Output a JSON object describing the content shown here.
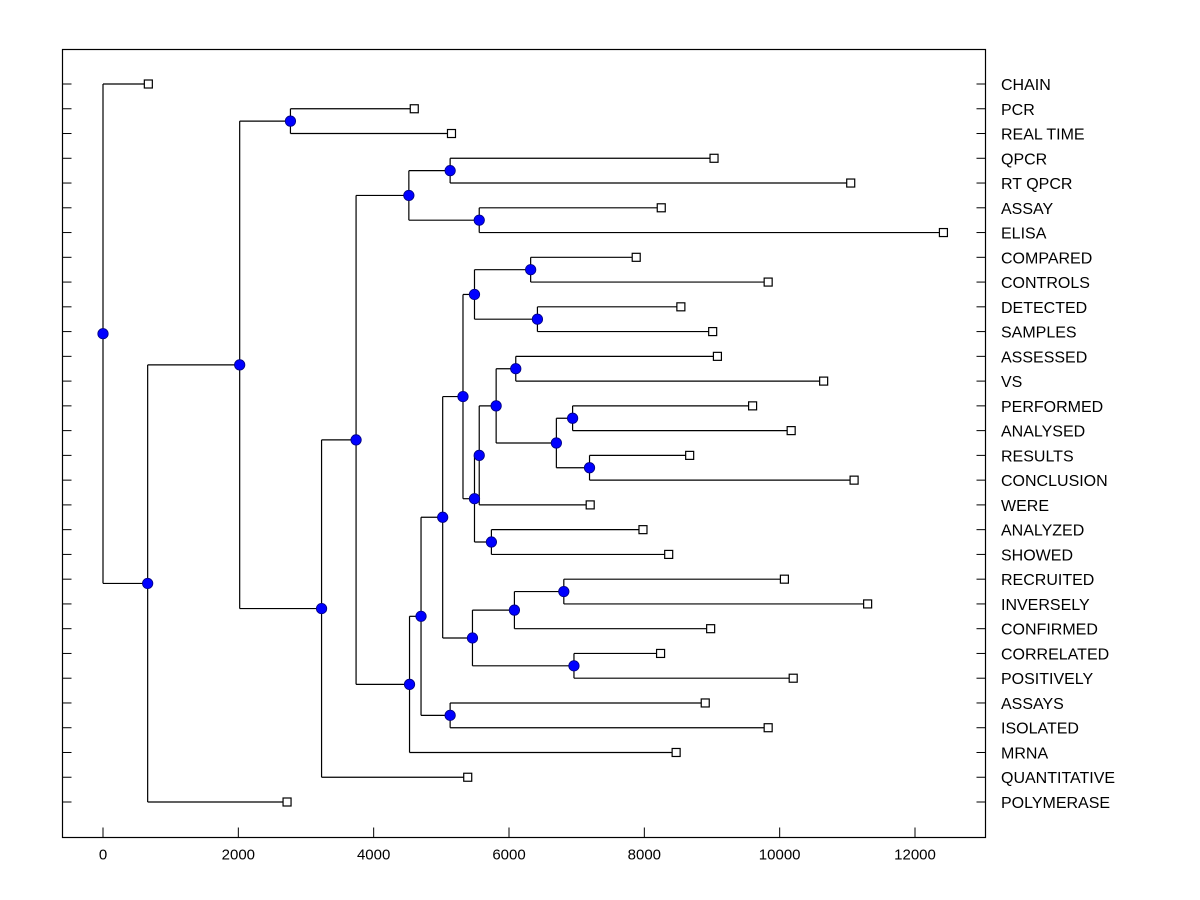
{
  "chart_data": {
    "type": "dendrogram",
    "title": "",
    "xlabel": "",
    "ylabel": "",
    "xlim": [
      -600,
      13000
    ],
    "xticks": [
      0,
      2000,
      4000,
      6000,
      8000,
      10000,
      12000
    ],
    "xtick_labels": [
      "0",
      "2000",
      "4000",
      "6000",
      "8000",
      "10000",
      "12000"
    ],
    "grid": false,
    "legend": "none",
    "colors": {
      "node_fill": "#0000ff",
      "node_stroke": "#000080",
      "leaf_fill": "#ffffff",
      "line": "#000000"
    },
    "leaves": [
      "CHAIN",
      "PCR",
      "REAL TIME",
      "QPCR",
      "RT QPCR",
      "ASSAY",
      "ELISA",
      "COMPARED",
      "CONTROLS",
      "DETECTED",
      "SAMPLES",
      "ASSESSED",
      "VS",
      "PERFORMED",
      "ANALYSED",
      "RESULTS",
      "CONCLUSION",
      "WERE",
      "ANALYZED",
      "SHOWED",
      "RECRUITED",
      "INVERSELY",
      "CONFIRMED",
      "CORRELATED",
      "POSITIVELY",
      "ASSAYS",
      "ISOLATED",
      "MRNA",
      "QUANTITATIVE",
      "POLYMERASE"
    ],
    "tree": {
      "x": 0,
      "children": [
        {
          "leaf": "CHAIN",
          "x": 670
        },
        {
          "x": 660,
          "children": [
            {
              "x": 2020,
              "children": [
                {
                  "x": 2770,
                  "children": [
                    {
                      "leaf": "PCR",
                      "x": 4600
                    },
                    {
                      "leaf": "REAL TIME",
                      "x": 5150
                    }
                  ]
                },
                {
                  "x": 3230,
                  "children": [
                    {
                      "x": 3740,
                      "children": [
                        {
                          "x": 4520,
                          "children": [
                            {
                              "x": 5130,
                              "children": [
                                {
                                  "leaf": "QPCR",
                                  "x": 9030
                                },
                                {
                                  "leaf": "RT QPCR",
                                  "x": 11050
                                }
                              ]
                            },
                            {
                              "x": 5560,
                              "children": [
                                {
                                  "leaf": "ASSAY",
                                  "x": 8250
                                },
                                {
                                  "leaf": "ELISA",
                                  "x": 12420
                                }
                              ]
                            }
                          ]
                        },
                        {
                          "x": 4530,
                          "children": [
                            {
                              "x": 4700,
                              "children": [
                                {
                                  "x": 5020,
                                  "children": [
                                    {
                                      "x": 5320,
                                      "children": [
                                        {
                                          "x": 5490,
                                          "children": [
                                            {
                                              "x": 6320,
                                              "children": [
                                                {
                                                  "leaf": "COMPARED",
                                                  "x": 7880
                                                },
                                                {
                                                  "leaf": "CONTROLS",
                                                  "x": 9830
                                                }
                                              ]
                                            },
                                            {
                                              "x": 6420,
                                              "children": [
                                                {
                                                  "leaf": "DETECTED",
                                                  "x": 8540
                                                },
                                                {
                                                  "leaf": "SAMPLES",
                                                  "x": 9010
                                                }
                                              ]
                                            }
                                          ]
                                        },
                                        {
                                          "x": 5490,
                                          "children": [
                                            {
                                              "x": 5560,
                                              "children": [
                                                {
                                                  "x": 5810,
                                                  "children": [
                                                    {
                                                      "x": 6100,
                                                      "children": [
                                                        {
                                                          "leaf": "ASSESSED",
                                                          "x": 9080
                                                        },
                                                        {
                                                          "leaf": "VS",
                                                          "x": 10650
                                                        }
                                                      ]
                                                    },
                                                    {
                                                      "x": 6700,
                                                      "children": [
                                                        {
                                                          "x": 6940,
                                                          "children": [
                                                            {
                                                              "leaf": "PERFORMED",
                                                              "x": 9600
                                                            },
                                                            {
                                                              "leaf": "ANALYSED",
                                                              "x": 10170
                                                            }
                                                          ]
                                                        },
                                                        {
                                                          "x": 7190,
                                                          "children": [
                                                            {
                                                              "leaf": "RESULTS",
                                                              "x": 8670
                                                            },
                                                            {
                                                              "leaf": "CONCLUSION",
                                                              "x": 11100
                                                            }
                                                          ]
                                                        }
                                                      ]
                                                    }
                                                  ]
                                                },
                                                {
                                                  "leaf": "WERE",
                                                  "x": 7200
                                                }
                                              ]
                                            },
                                            {
                                              "x": 5740,
                                              "children": [
                                                {
                                                  "leaf": "ANALYZED",
                                                  "x": 7980
                                                },
                                                {
                                                  "leaf": "SHOWED",
                                                  "x": 8360
                                                }
                                              ]
                                            }
                                          ]
                                        }
                                      ]
                                    },
                                    {
                                      "x": 5460,
                                      "children": [
                                        {
                                          "x": 6080,
                                          "children": [
                                            {
                                              "x": 6810,
                                              "children": [
                                                {
                                                  "leaf": "RECRUITED",
                                                  "x": 10070
                                                },
                                                {
                                                  "leaf": "INVERSELY",
                                                  "x": 11300
                                                }
                                              ]
                                            },
                                            {
                                              "leaf": "CONFIRMED",
                                              "x": 8980
                                            }
                                          ]
                                        },
                                        {
                                          "x": 6960,
                                          "children": [
                                            {
                                              "leaf": "CORRELATED",
                                              "x": 8240
                                            },
                                            {
                                              "leaf": "POSITIVELY",
                                              "x": 10200
                                            }
                                          ]
                                        }
                                      ]
                                    }
                                  ]
                                },
                                {
                                  "x": 5130,
                                  "children": [
                                    {
                                      "leaf": "ASSAYS",
                                      "x": 8900
                                    },
                                    {
                                      "leaf": "ISOLATED",
                                      "x": 9830
                                    }
                                  ]
                                }
                              ]
                            },
                            {
                              "leaf": "MRNA",
                              "x": 8470
                            }
                          ]
                        }
                      ]
                    },
                    {
                      "leaf": "QUANTITATIVE",
                      "x": 5390
                    }
                  ]
                }
              ]
            },
            {
              "leaf": "POLYMERASE",
              "x": 2720
            }
          ]
        }
      ]
    }
  }
}
